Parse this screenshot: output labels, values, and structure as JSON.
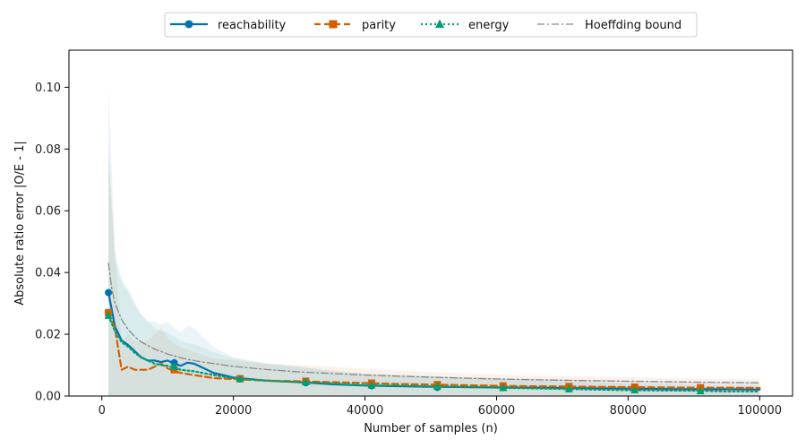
{
  "chart_data": {
    "type": "line",
    "xlabel": "Number of samples (n)",
    "ylabel": "Absolute ratio error  |O/E - 1|",
    "xlim": [
      -5000,
      105000
    ],
    "ylim": [
      0,
      0.112
    ],
    "x_ticks": [
      0,
      20000,
      40000,
      60000,
      80000,
      100000
    ],
    "x_tick_labels": [
      "0",
      "20000",
      "40000",
      "60000",
      "80000",
      "100000"
    ],
    "y_ticks": [
      0.0,
      0.02,
      0.04,
      0.06,
      0.08,
      0.1
    ],
    "y_tick_labels": [
      "0.00",
      "0.02",
      "0.04",
      "0.06",
      "0.08",
      "0.10"
    ],
    "grid": false,
    "legend_position": "top-center",
    "series": [
      {
        "name": "reachability",
        "color": "#0072b2",
        "style": "solid",
        "marker": "circle",
        "x": [
          1000,
          2000,
          3000,
          4000,
          5000,
          6000,
          7000,
          8000,
          9000,
          10000,
          11000,
          12000,
          13000,
          14000,
          15000,
          17000,
          20000,
          25000,
          30000,
          35000,
          40000,
          45000,
          50000,
          55000,
          60000,
          65000,
          70000,
          75000,
          80000,
          85000,
          90000,
          95000,
          100000
        ],
        "y": [
          0.0335,
          0.0225,
          0.018,
          0.0165,
          0.0145,
          0.0125,
          0.0115,
          0.0115,
          0.011,
          0.0115,
          0.0105,
          0.0098,
          0.0108,
          0.0105,
          0.0095,
          0.0075,
          0.006,
          0.005,
          0.0045,
          0.0038,
          0.0034,
          0.0032,
          0.003,
          0.0029,
          0.0028,
          0.0027,
          0.0026,
          0.0025,
          0.0024,
          0.0023,
          0.0022,
          0.0022,
          0.0021
        ],
        "marker_x": [
          1000,
          11000,
          21000,
          31000,
          41000,
          51000,
          61000,
          71000,
          81000,
          91000
        ],
        "marker_y": [
          0.0335,
          0.0108,
          0.0055,
          0.0043,
          0.0033,
          0.0028,
          0.0027,
          0.0024,
          0.0022,
          0.002
        ]
      },
      {
        "name": "parity",
        "color": "#d55e00",
        "style": "dashed",
        "marker": "square",
        "x": [
          1000,
          2000,
          3000,
          4000,
          5000,
          6000,
          7000,
          8000,
          9000,
          10000,
          11000,
          12000,
          14000,
          17000,
          20000,
          25000,
          30000,
          35000,
          40000,
          45000,
          50000,
          55000,
          60000,
          65000,
          70000,
          75000,
          80000,
          85000,
          90000,
          95000,
          100000
        ],
        "y": [
          0.027,
          0.022,
          0.0085,
          0.0095,
          0.0085,
          0.0085,
          0.0085,
          0.0095,
          0.0105,
          0.009,
          0.008,
          0.0075,
          0.0068,
          0.0058,
          0.0055,
          0.005,
          0.0048,
          0.0045,
          0.0042,
          0.0039,
          0.0037,
          0.0035,
          0.0033,
          0.0032,
          0.0031,
          0.003,
          0.0029,
          0.0028,
          0.0027,
          0.0027,
          0.0026
        ],
        "marker_x": [
          1000,
          11000,
          21000,
          31000,
          41000,
          51000,
          61000,
          71000,
          81000,
          91000
        ],
        "marker_y": [
          0.027,
          0.0085,
          0.0056,
          0.0048,
          0.0042,
          0.0037,
          0.0033,
          0.0031,
          0.0029,
          0.0027
        ]
      },
      {
        "name": "energy",
        "color": "#009e73",
        "style": "dotted",
        "marker": "triangle",
        "x": [
          1000,
          2000,
          3000,
          4000,
          5000,
          6000,
          7000,
          8000,
          9000,
          10000,
          11000,
          12000,
          14000,
          17000,
          20000,
          25000,
          30000,
          35000,
          40000,
          45000,
          50000,
          55000,
          60000,
          65000,
          70000,
          75000,
          80000,
          85000,
          90000,
          95000,
          100000
        ],
        "y": [
          0.026,
          0.021,
          0.0175,
          0.016,
          0.014,
          0.0125,
          0.0115,
          0.0105,
          0.01,
          0.0098,
          0.0092,
          0.0085,
          0.008,
          0.0068,
          0.0058,
          0.005,
          0.0045,
          0.004,
          0.0035,
          0.0033,
          0.0031,
          0.0029,
          0.0027,
          0.0025,
          0.0023,
          0.0021,
          0.0019,
          0.0018,
          0.0017,
          0.0015,
          0.0015
        ],
        "marker_x": [
          1000,
          11000,
          21000,
          31000,
          41000,
          51000,
          61000,
          71000,
          81000,
          91000
        ],
        "marker_y": [
          0.026,
          0.0095,
          0.0055,
          0.0045,
          0.0035,
          0.0031,
          0.0026,
          0.0022,
          0.0019,
          0.0016
        ]
      },
      {
        "name": "Hoeffding bound",
        "color": "#888888",
        "style": "dashdot",
        "marker": "none",
        "x": [
          1000,
          1500,
          2000,
          3000,
          4000,
          5000,
          6000,
          8000,
          10000,
          12500,
          15000,
          20000,
          25000,
          30000,
          40000,
          50000,
          60000,
          70000,
          80000,
          90000,
          100000
        ],
        "y": [
          0.043,
          0.035,
          0.03,
          0.0248,
          0.0215,
          0.0192,
          0.0175,
          0.0152,
          0.0136,
          0.0121,
          0.0111,
          0.0096,
          0.0086,
          0.0078,
          0.0068,
          0.0061,
          0.0055,
          0.0051,
          0.0048,
          0.0045,
          0.0043
        ]
      }
    ]
  }
}
